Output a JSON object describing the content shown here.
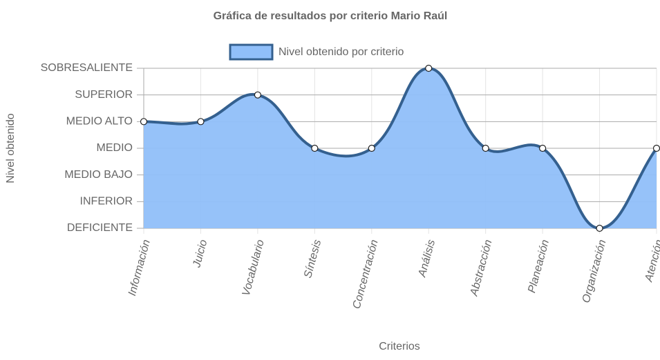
{
  "chart_data": {
    "type": "line",
    "title": "Gráfica de resultados por criterio Mario Raúl",
    "x_label": "Criterios",
    "y_label": "Nivel obtenido",
    "categories": [
      "Información",
      "Juicio",
      "Vocabulario",
      "Síntesis",
      "Concentración",
      "Análisis",
      "Abstracción",
      "Planeación",
      "Organización",
      "Atención"
    ],
    "series": [
      {
        "name": "Nivel obtenido por criterio",
        "color": "#34608f",
        "fill_color": "#90bff9",
        "values": [
          5,
          5,
          6,
          4,
          4,
          7,
          4,
          4,
          1,
          4
        ]
      }
    ],
    "ylim": [
      1,
      7
    ],
    "yticks": [
      {
        "value": 1,
        "label": "DEFICIENTE"
      },
      {
        "value": 2,
        "label": "INFERIOR"
      },
      {
        "value": 3,
        "label": "MEDIO BAJO"
      },
      {
        "value": 4,
        "label": "MEDIO"
      },
      {
        "value": 5,
        "label": "MEDIO ALTO"
      },
      {
        "value": 6,
        "label": "SUPERIOR"
      },
      {
        "value": 7,
        "label": "SOBRESALIENTE"
      }
    ],
    "grid": true,
    "legend": "top"
  }
}
